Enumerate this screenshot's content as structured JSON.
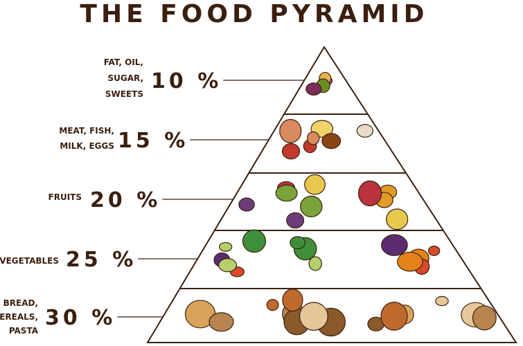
{
  "title": "THE FOOD PYRAMID",
  "levels": [
    {
      "label": [
        "FAT, OIL,",
        "SUGAR,",
        "SWEETS"
      ],
      "percent": "10 %"
    },
    {
      "label": [
        "MEAT, FISH,",
        "MILK, EGGS"
      ],
      "percent": "15 %"
    },
    {
      "label": [
        "FRUITS"
      ],
      "percent": "20 %"
    },
    {
      "label": [
        "VEGETABLES"
      ],
      "percent": "25 %"
    },
    {
      "label": [
        "BREAD,",
        "CEREALS,",
        "PASTA"
      ],
      "percent": "30 %"
    }
  ]
}
